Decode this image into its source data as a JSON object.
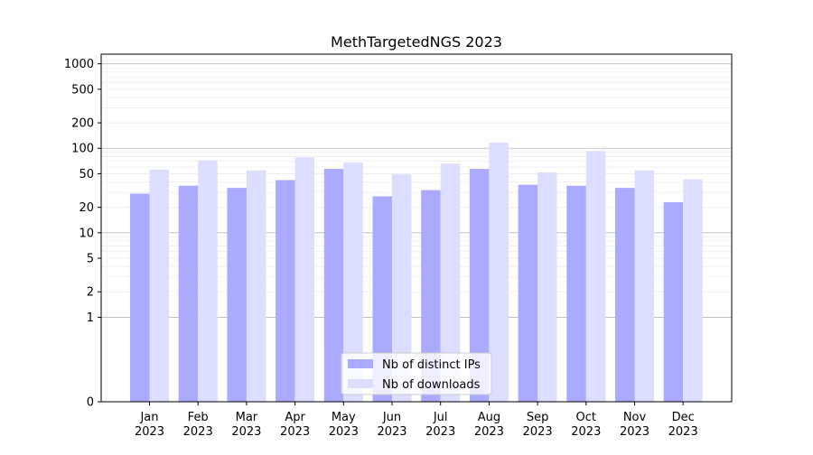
{
  "chart_data": {
    "type": "bar",
    "title": "MethTargetedNGS 2023",
    "xlabel": "",
    "ylabel": "",
    "y_scale": "symlog",
    "ylim": [
      0,
      1300
    ],
    "grid": true,
    "legend_position": "bottom-center",
    "categories": [
      [
        "Jan",
        "2023"
      ],
      [
        "Feb",
        "2023"
      ],
      [
        "Mar",
        "2023"
      ],
      [
        "Apr",
        "2023"
      ],
      [
        "May",
        "2023"
      ],
      [
        "Jun",
        "2023"
      ],
      [
        "Jul",
        "2023"
      ],
      [
        "Aug",
        "2023"
      ],
      [
        "Sep",
        "2023"
      ],
      [
        "Oct",
        "2023"
      ],
      [
        "Nov",
        "2023"
      ],
      [
        "Dec",
        "2023"
      ]
    ],
    "y_ticks": [
      0,
      1,
      2,
      5,
      10,
      20,
      50,
      100,
      200,
      500,
      1000
    ],
    "y_tick_labels": [
      "0",
      "1",
      "2",
      "5",
      "10",
      "20",
      "50",
      "100",
      "200",
      "500",
      "1000"
    ],
    "series": [
      {
        "name": "Nb of distinct IPs",
        "color": "#aaaaff",
        "values": [
          29,
          36,
          34,
          42,
          57,
          27,
          32,
          57,
          37,
          36,
          34,
          23
        ]
      },
      {
        "name": "Nb of downloads",
        "color": "#ddddff",
        "values": [
          56,
          72,
          55,
          78,
          68,
          49,
          66,
          117,
          52,
          93,
          55,
          43
        ]
      }
    ]
  }
}
